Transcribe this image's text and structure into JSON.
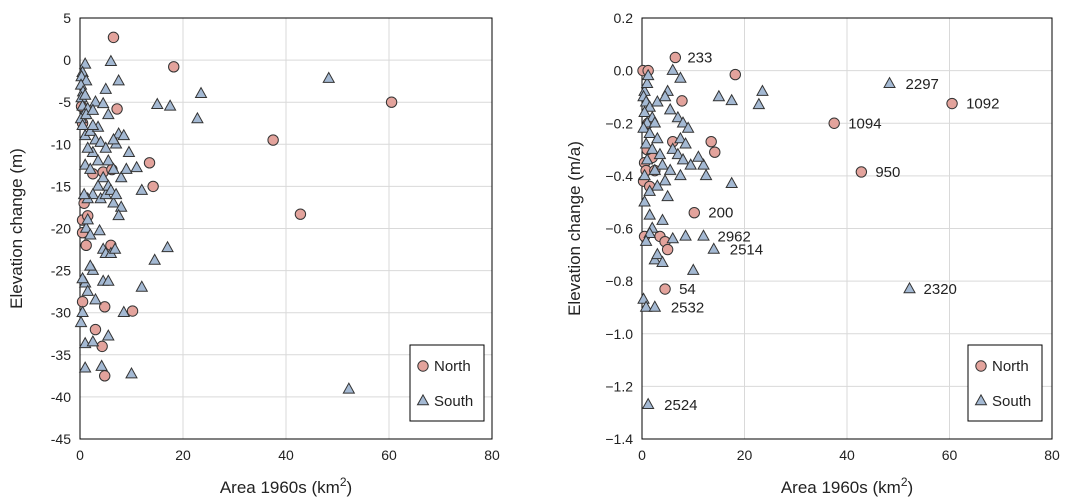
{
  "colors": {
    "north_fill": "#e3a39c",
    "south_fill": "#a4b9d3",
    "stroke": "#333333",
    "grid": "#d9d9d9",
    "frame": "#000000"
  },
  "chart_data": [
    {
      "type": "scatter",
      "xlabel": "Area 1960s (km²)",
      "ylabel": "Elevation change (m)",
      "xlim": [
        0,
        80
      ],
      "ylim": [
        -45,
        5
      ],
      "x_ticks": [
        0,
        20,
        40,
        60,
        80
      ],
      "y_ticks": [
        5,
        0,
        -5,
        -10,
        -15,
        -20,
        -25,
        -30,
        -35,
        -40,
        -45
      ],
      "y_tick_labels": [
        "5",
        "0",
        "-5",
        "-10",
        "-15",
        "-20",
        "-25",
        "-30",
        "-35",
        "-40",
        "-45"
      ],
      "grid": true,
      "legend_position": "bottom-right",
      "series": [
        {
          "name": "North",
          "marker": "circle",
          "color": "#e3a39c",
          "points": [
            [
              6.5,
              2.7
            ],
            [
              18.2,
              -0.8
            ],
            [
              60.5,
              -5
            ],
            [
              37.5,
              -9.5
            ],
            [
              42.8,
              -18.3
            ],
            [
              13.5,
              -12.2
            ],
            [
              14.2,
              -15
            ],
            [
              7.2,
              -5.8
            ],
            [
              0.3,
              -5.5
            ],
            [
              0.5,
              -7.5
            ],
            [
              2.5,
              -13.5
            ],
            [
              4.5,
              -13.3
            ],
            [
              6.2,
              -13
            ],
            [
              0.8,
              -17
            ],
            [
              0.5,
              -19
            ],
            [
              1.5,
              -18.5
            ],
            [
              0.5,
              -20.5
            ],
            [
              1.2,
              -22
            ],
            [
              6,
              -22
            ],
            [
              0.5,
              -28.7
            ],
            [
              4.8,
              -29.3
            ],
            [
              10.2,
              -29.8
            ],
            [
              3,
              -32
            ],
            [
              4.3,
              -34
            ],
            [
              4.8,
              -37.5
            ]
          ]
        },
        {
          "name": "South",
          "marker": "triangle",
          "color": "#a4b9d3",
          "points": [
            [
              1,
              -0.5
            ],
            [
              0.5,
              -1.5
            ],
            [
              0.3,
              -2
            ],
            [
              1.2,
              -2.5
            ],
            [
              0.2,
              -3
            ],
            [
              0.6,
              -3.8
            ],
            [
              0.3,
              -4.5
            ],
            [
              1,
              -4.2
            ],
            [
              0.5,
              -5.5
            ],
            [
              1.5,
              -5.8
            ],
            [
              0.8,
              -6.5
            ],
            [
              0.2,
              -7
            ],
            [
              0.5,
              -7.8
            ],
            [
              1.2,
              -6.5
            ],
            [
              3,
              -5
            ],
            [
              4.5,
              -5.2
            ],
            [
              5,
              -3.5
            ],
            [
              6,
              -0.2
            ],
            [
              7.5,
              -2.5
            ],
            [
              5.5,
              -6.5
            ],
            [
              2.5,
              -6
            ],
            [
              1,
              -9
            ],
            [
              2,
              -8.5
            ],
            [
              3,
              -9.5
            ],
            [
              4,
              -9.8
            ],
            [
              2.5,
              -11
            ],
            [
              1.5,
              -10.5
            ],
            [
              3.5,
              -12
            ],
            [
              1,
              -12.5
            ],
            [
              2,
              -13
            ],
            [
              4.5,
              -14
            ],
            [
              3.5,
              -15
            ],
            [
              2.5,
              -16
            ],
            [
              1.5,
              -16.5
            ],
            [
              0.8,
              -16
            ],
            [
              4,
              -16.5
            ],
            [
              5,
              -16
            ],
            [
              5.5,
              -15
            ],
            [
              6,
              -15.5
            ],
            [
              6.5,
              -17
            ],
            [
              7,
              -16
            ],
            [
              8,
              -17.5
            ],
            [
              7.5,
              -18.5
            ],
            [
              8,
              -14
            ],
            [
              9,
              -13
            ],
            [
              9.5,
              -11
            ],
            [
              7,
              -10
            ],
            [
              7.5,
              -8.8
            ],
            [
              8.5,
              -9
            ],
            [
              6.5,
              -9.5
            ],
            [
              5,
              -10.5
            ],
            [
              5.5,
              -12
            ],
            [
              6.5,
              -13
            ],
            [
              3.5,
              -8
            ],
            [
              2.5,
              -7.8
            ],
            [
              11,
              -12.8
            ],
            [
              12,
              -15.5
            ],
            [
              15,
              -5.3
            ],
            [
              17.5,
              -5.5
            ],
            [
              22.8,
              -7
            ],
            [
              23.5,
              -4
            ],
            [
              48.3,
              -2.2
            ],
            [
              1.2,
              -20
            ],
            [
              2,
              -20.8
            ],
            [
              3.8,
              -20.3
            ],
            [
              1.5,
              -19
            ],
            [
              4.5,
              -22.5
            ],
            [
              5,
              -23
            ],
            [
              6,
              -23
            ],
            [
              6.8,
              -22.5
            ],
            [
              2.5,
              -25
            ],
            [
              2,
              -24.5
            ],
            [
              1,
              -26.5
            ],
            [
              0.5,
              -26
            ],
            [
              4.5,
              -26.3
            ],
            [
              5.5,
              -26.3
            ],
            [
              1.5,
              -27.5
            ],
            [
              3,
              -28.5
            ],
            [
              12,
              -27
            ],
            [
              14.5,
              -23.8
            ],
            [
              17,
              -22.3
            ],
            [
              0.5,
              -30
            ],
            [
              0.2,
              -31.2
            ],
            [
              5.5,
              -32.8
            ],
            [
              8.5,
              -30
            ],
            [
              1,
              -33.7
            ],
            [
              2.5,
              -33.5
            ],
            [
              4.2,
              -36.4
            ],
            [
              1,
              -36.6
            ],
            [
              10,
              -37.3
            ],
            [
              52.2,
              -39.1
            ]
          ]
        }
      ],
      "annotations": []
    },
    {
      "type": "scatter",
      "xlabel": "Area 1960s (km²)",
      "ylabel": "Elevation change (m/a)",
      "xlim": [
        0,
        80
      ],
      "ylim": [
        -1.4,
        0.2
      ],
      "x_ticks": [
        0,
        20,
        40,
        60,
        80
      ],
      "y_ticks": [
        0.2,
        0,
        -0.2,
        -0.4,
        -0.6,
        -0.8,
        -1,
        -1.2,
        -1.4
      ],
      "y_tick_labels": [
        "0.2",
        "0.0",
        "−0.2",
        "−0.4",
        "−0.6",
        "−0.8",
        "−1.0",
        "−1.2",
        "−1.4"
      ],
      "grid": true,
      "legend_position": "bottom-right",
      "series": [
        {
          "name": "North",
          "marker": "circle",
          "color": "#e3a39c",
          "points": [
            [
              0.2,
              0
            ],
            [
              1.2,
              0
            ],
            [
              6.5,
              0.05
            ],
            [
              18.2,
              -0.015
            ],
            [
              60.5,
              -0.125
            ],
            [
              37.5,
              -0.2
            ],
            [
              42.8,
              -0.385
            ],
            [
              13.5,
              -0.27
            ],
            [
              14.2,
              -0.31
            ],
            [
              7.8,
              -0.115
            ],
            [
              0.5,
              -0.35
            ],
            [
              0.8,
              -0.38
            ],
            [
              0.3,
              -0.42
            ],
            [
              1.5,
              -0.44
            ],
            [
              10.2,
              -0.54
            ],
            [
              0.5,
              -0.63
            ],
            [
              3.5,
              -0.63
            ],
            [
              4.5,
              -0.65
            ],
            [
              5,
              -0.68
            ],
            [
              4.5,
              -0.83
            ],
            [
              1.2,
              -0.2
            ],
            [
              6,
              -0.27
            ],
            [
              2,
              -0.33
            ],
            [
              2.5,
              -0.38
            ],
            [
              1,
              -0.3
            ]
          ]
        },
        {
          "name": "South",
          "marker": "triangle",
          "color": "#a4b9d3",
          "points": [
            [
              0.5,
              -0.08
            ],
            [
              1,
              -0.05
            ],
            [
              1.2,
              -0.02
            ],
            [
              0.3,
              -0.1
            ],
            [
              0.8,
              -0.12
            ],
            [
              1.5,
              -0.14
            ],
            [
              0.5,
              -0.16
            ],
            [
              2,
              -0.18
            ],
            [
              1,
              -0.2
            ],
            [
              0.3,
              -0.22
            ],
            [
              2.5,
              -0.2
            ],
            [
              1.5,
              -0.24
            ],
            [
              3,
              -0.26
            ],
            [
              0.8,
              -0.28
            ],
            [
              2,
              -0.3
            ],
            [
              3.5,
              -0.32
            ],
            [
              1,
              -0.34
            ],
            [
              4,
              -0.36
            ],
            [
              2.5,
              -0.38
            ],
            [
              0.5,
              -0.4
            ],
            [
              4.5,
              -0.42
            ],
            [
              3,
              -0.44
            ],
            [
              1.5,
              -0.46
            ],
            [
              5,
              -0.48
            ],
            [
              0.5,
              -0.5
            ],
            [
              6,
              0
            ],
            [
              7.5,
              -0.03
            ],
            [
              5,
              -0.08
            ],
            [
              3,
              -0.12
            ],
            [
              4.5,
              -0.1
            ],
            [
              5.5,
              -0.15
            ],
            [
              7,
              -0.18
            ],
            [
              8,
              -0.2
            ],
            [
              9,
              -0.22
            ],
            [
              7.5,
              -0.26
            ],
            [
              8.5,
              -0.28
            ],
            [
              6,
              -0.3
            ],
            [
              7,
              -0.32
            ],
            [
              8,
              -0.34
            ],
            [
              9.5,
              -0.36
            ],
            [
              5.5,
              -0.38
            ],
            [
              7.5,
              -0.4
            ],
            [
              12,
              -0.36
            ],
            [
              12.5,
              -0.4
            ],
            [
              11,
              -0.33
            ],
            [
              15,
              -0.1
            ],
            [
              17.5,
              -0.115
            ],
            [
              22.8,
              -0.13
            ],
            [
              23.5,
              -0.08
            ],
            [
              48.3,
              -0.05
            ],
            [
              17.5,
              -0.43
            ],
            [
              1.5,
              -0.55
            ],
            [
              2,
              -0.6
            ],
            [
              4,
              -0.57
            ],
            [
              1.5,
              -0.62
            ],
            [
              0.8,
              -0.65
            ],
            [
              6,
              -0.64
            ],
            [
              8.5,
              -0.63
            ],
            [
              12,
              -0.63
            ],
            [
              14,
              -0.68
            ],
            [
              2.5,
              -0.72
            ],
            [
              3,
              -0.7
            ],
            [
              4,
              -0.73
            ],
            [
              10,
              -0.76
            ],
            [
              52.2,
              -0.83
            ],
            [
              0.3,
              -0.87
            ],
            [
              0.8,
              -0.9
            ],
            [
              2.5,
              -0.9
            ],
            [
              1.2,
              -1.27
            ]
          ]
        }
      ],
      "annotations": [
        {
          "label": "233",
          "x": 6.5,
          "y": 0.05
        },
        {
          "label": "2297",
          "x": 48.3,
          "y": -0.05
        },
        {
          "label": "1092",
          "x": 60.5,
          "y": -0.125
        },
        {
          "label": "1094",
          "x": 37.5,
          "y": -0.2
        },
        {
          "label": "950",
          "x": 42.8,
          "y": -0.385
        },
        {
          "label": "200",
          "x": 10.2,
          "y": -0.54
        },
        {
          "label": "2962",
          "x": 12,
          "y": -0.63
        },
        {
          "label": "2514",
          "x": 14,
          "y": -0.68
        },
        {
          "label": "54",
          "x": 4.5,
          "y": -0.83
        },
        {
          "label": "2320",
          "x": 52.2,
          "y": -0.83
        },
        {
          "label": "2532",
          "x": 2.5,
          "y": -0.9
        },
        {
          "label": "2524",
          "x": 1.2,
          "y": -1.27
        }
      ]
    }
  ]
}
